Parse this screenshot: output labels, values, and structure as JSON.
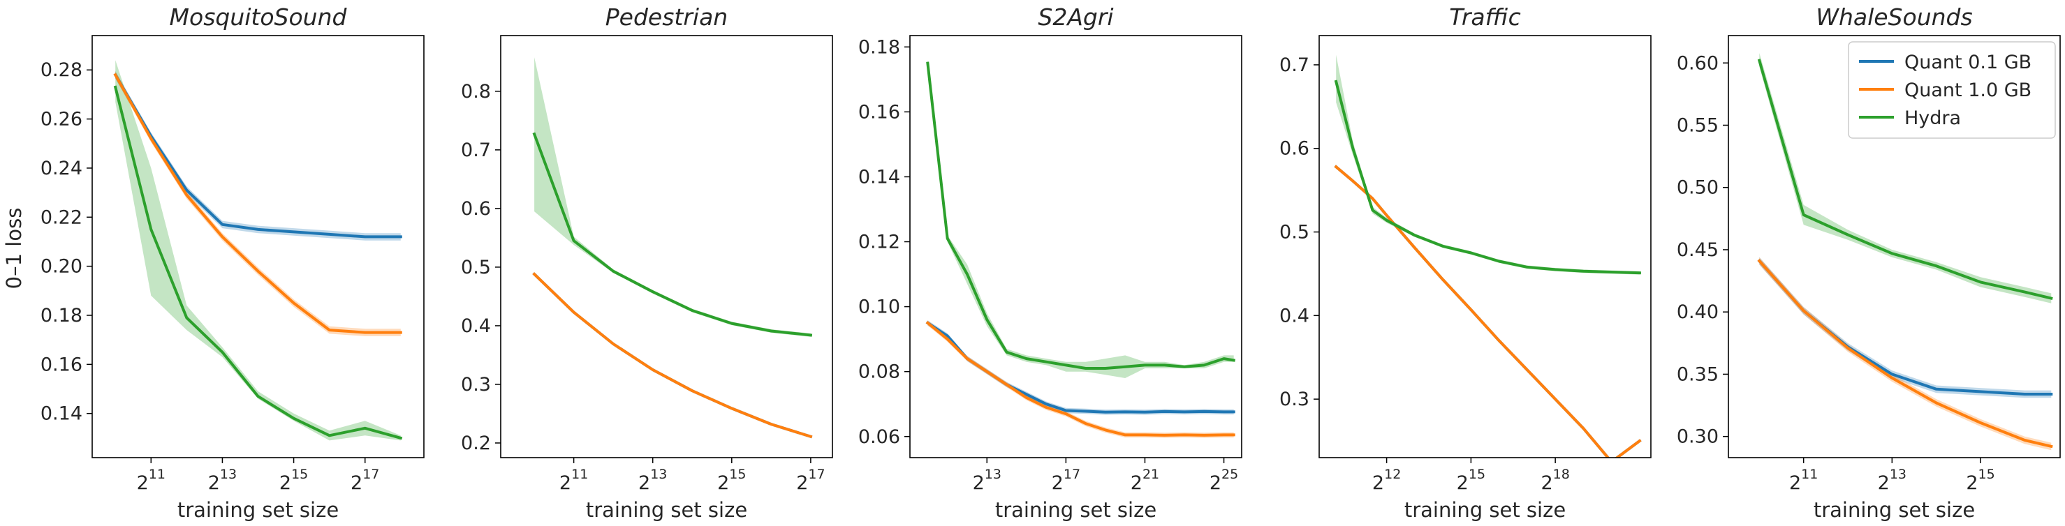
{
  "figure": {
    "ylabel": "0–1 loss",
    "legend": {
      "placement": "top-right of last panel",
      "entries": [
        {
          "label": "Quant 0.1 GB",
          "color": "#1f77b4"
        },
        {
          "label": "Quant 1.0 GB",
          "color": "#ff7f0e"
        },
        {
          "label": "Hydra",
          "color": "#2ca02c"
        }
      ]
    }
  },
  "chart_data": [
    {
      "type": "line",
      "title": "MosquitoSound",
      "xlabel": "training set size",
      "ylabel": "0–1 loss",
      "x_scale": "log2",
      "xlim_exp": [
        9.35,
        18.65
      ],
      "x_ticks": [
        "11",
        "13",
        "15",
        "17"
      ],
      "ylim": [
        0.122,
        0.294
      ],
      "y_ticks": [
        "0.14",
        "0.16",
        "0.18",
        "0.20",
        "0.22",
        "0.24",
        "0.26",
        "0.28"
      ],
      "x_exp": [
        10,
        11,
        12,
        13,
        14,
        15,
        16,
        17,
        18
      ],
      "series": [
        {
          "name": "Quant 0.1 GB",
          "color": "#1f77b4",
          "values": [
            0.278,
            0.253,
            0.231,
            0.217,
            0.215,
            0.214,
            0.213,
            0.212,
            0.212
          ],
          "band": 0.0015
        },
        {
          "name": "Quant 1.0 GB",
          "color": "#ff7f0e",
          "values": [
            0.278,
            0.252,
            0.229,
            0.212,
            0.198,
            0.185,
            0.174,
            0.173,
            0.173
          ],
          "band": 0.0015
        },
        {
          "name": "Hydra",
          "color": "#2ca02c",
          "values": [
            0.273,
            0.215,
            0.179,
            0.165,
            0.147,
            0.138,
            0.131,
            0.134,
            0.13
          ],
          "lower": [
            0.267,
            0.188,
            0.174,
            0.163,
            0.146,
            0.137,
            0.129,
            0.131,
            0.129
          ],
          "upper": [
            0.284,
            0.24,
            0.184,
            0.167,
            0.149,
            0.14,
            0.133,
            0.137,
            0.131
          ]
        }
      ]
    },
    {
      "type": "line",
      "title": "Pedestrian",
      "xlabel": "training set size",
      "x_scale": "log2",
      "xlim_exp": [
        9.15,
        17.55
      ],
      "x_ticks": [
        "11",
        "13",
        "15",
        "17"
      ],
      "ylim": [
        0.175,
        0.895
      ],
      "y_ticks": [
        "0.2",
        "0.3",
        "0.4",
        "0.5",
        "0.6",
        "0.7",
        "0.8"
      ],
      "x_exp": [
        10,
        11,
        12,
        13,
        14,
        15,
        16,
        17
      ],
      "series": [
        {
          "name": "Quant 0.1 GB",
          "color": "#1f77b4",
          "values": [
            0.488,
            0.423,
            0.369,
            0.325,
            0.289,
            0.259,
            0.232,
            0.211
          ],
          "band": 0.002
        },
        {
          "name": "Quant 1.0 GB",
          "color": "#ff7f0e",
          "values": [
            0.488,
            0.423,
            0.369,
            0.325,
            0.289,
            0.259,
            0.232,
            0.211
          ],
          "band": 0.002
        },
        {
          "name": "Hydra",
          "color": "#2ca02c",
          "values": [
            0.727,
            0.545,
            0.493,
            0.458,
            0.426,
            0.404,
            0.391,
            0.384
          ],
          "lower": [
            0.595,
            0.538,
            0.49,
            0.455,
            0.423,
            0.401,
            0.388,
            0.381
          ],
          "upper": [
            0.858,
            0.552,
            0.496,
            0.461,
            0.429,
            0.407,
            0.394,
            0.387
          ]
        }
      ]
    },
    {
      "type": "line",
      "title": "S2Agri",
      "xlabel": "training set size",
      "x_scale": "log2",
      "xlim_exp": [
        9.1,
        25.9
      ],
      "x_ticks": [
        "13",
        "17",
        "21",
        "25"
      ],
      "ylim": [
        0.0535,
        0.1835
      ],
      "y_ticks": [
        "0.06",
        "0.08",
        "0.10",
        "0.12",
        "0.14",
        "0.16",
        "0.18"
      ],
      "x_exp": [
        10,
        11,
        12,
        13,
        14,
        15,
        16,
        17,
        18,
        19,
        20,
        21,
        22,
        23,
        24,
        25,
        25.5
      ],
      "series": [
        {
          "name": "Quant 0.1 GB",
          "color": "#1f77b4",
          "values": [
            0.095,
            0.091,
            0.084,
            0.08,
            0.076,
            0.073,
            0.07,
            0.068,
            0.0678,
            0.0675,
            0.0676,
            0.0675,
            0.0677,
            0.0676,
            0.0677,
            0.0676,
            0.0676
          ],
          "band": 0.0008
        },
        {
          "name": "Quant 1.0 GB",
          "color": "#ff7f0e",
          "values": [
            0.095,
            0.09,
            0.084,
            0.08,
            0.076,
            0.072,
            0.069,
            0.067,
            0.064,
            0.062,
            0.0605,
            0.0605,
            0.0604,
            0.0605,
            0.0604,
            0.0605,
            0.0605
          ],
          "band": 0.0008
        },
        {
          "name": "Hydra",
          "color": "#2ca02c",
          "values": [
            0.175,
            0.121,
            0.11,
            0.096,
            0.086,
            0.084,
            0.083,
            0.082,
            0.081,
            0.081,
            0.0815,
            0.082,
            0.082,
            0.0815,
            0.082,
            0.084,
            0.0835
          ],
          "lower": [
            0.174,
            0.12,
            0.107,
            0.094,
            0.085,
            0.083,
            0.082,
            0.08,
            0.08,
            0.079,
            0.078,
            0.081,
            0.081,
            0.081,
            0.081,
            0.083,
            0.083
          ],
          "upper": [
            0.176,
            0.122,
            0.113,
            0.098,
            0.087,
            0.085,
            0.084,
            0.083,
            0.083,
            0.084,
            0.085,
            0.083,
            0.083,
            0.082,
            0.083,
            0.085,
            0.085
          ]
        }
      ]
    },
    {
      "type": "line",
      "title": "Traffic",
      "xlabel": "training set size",
      "x_scale": "log2",
      "xlim_exp": [
        9.6,
        21.4
      ],
      "x_ticks": [
        "12",
        "15",
        "18"
      ],
      "ylim": [
        0.23,
        0.735
      ],
      "y_ticks": [
        "0.3",
        "0.4",
        "0.5",
        "0.6",
        "0.7"
      ],
      "x_exp": [
        10.2,
        10.8,
        11.5,
        12,
        13,
        14,
        15,
        16,
        17,
        18,
        19,
        20,
        21
      ],
      "series": [
        {
          "name": "Quant 0.1 GB",
          "color": "#1f77b4",
          "values": [
            0.578,
            0.561,
            0.54,
            0.52,
            0.481,
            0.443,
            0.407,
            0.37,
            0.335,
            0.3,
            0.265,
            0.225,
            0.25
          ],
          "band": 0.002
        },
        {
          "name": "Quant 1.0 GB",
          "color": "#ff7f0e",
          "values": [
            0.578,
            0.561,
            0.54,
            0.52,
            0.481,
            0.443,
            0.407,
            0.37,
            0.335,
            0.3,
            0.265,
            0.225,
            0.25
          ],
          "band": 0.002
        },
        {
          "name": "Hydra",
          "color": "#2ca02c",
          "values": [
            0.68,
            0.6,
            0.526,
            0.514,
            0.496,
            0.483,
            0.475,
            0.465,
            0.458,
            0.455,
            0.453,
            0.452,
            0.451
          ],
          "lower": [
            0.655,
            0.592,
            0.522,
            0.511,
            0.494,
            0.481,
            0.473,
            0.463,
            0.456,
            0.453,
            0.451,
            0.45,
            0.449
          ],
          "upper": [
            0.712,
            0.608,
            0.53,
            0.517,
            0.498,
            0.485,
            0.477,
            0.467,
            0.46,
            0.457,
            0.455,
            0.454,
            0.453
          ]
        }
      ]
    },
    {
      "type": "line",
      "title": "WhaleSounds",
      "xlabel": "training set size",
      "x_scale": "log2",
      "xlim_exp": [
        9.3,
        16.8
      ],
      "x_ticks": [
        "11",
        "13",
        "15"
      ],
      "ylim": [
        0.283,
        0.622
      ],
      "y_ticks": [
        "0.30",
        "0.35",
        "0.40",
        "0.45",
        "0.50",
        "0.55",
        "0.60"
      ],
      "x_exp": [
        10,
        11,
        12,
        13,
        14,
        15,
        16,
        16.6
      ],
      "series": [
        {
          "name": "Quant 0.1 GB",
          "color": "#1f77b4",
          "values": [
            0.441,
            0.401,
            0.372,
            0.35,
            0.338,
            0.336,
            0.334,
            0.334
          ],
          "band": 0.003
        },
        {
          "name": "Quant 1.0 GB",
          "color": "#ff7f0e",
          "values": [
            0.441,
            0.401,
            0.371,
            0.347,
            0.327,
            0.311,
            0.297,
            0.292
          ],
          "band": 0.003
        },
        {
          "name": "Hydra",
          "color": "#2ca02c",
          "values": [
            0.602,
            0.478,
            0.462,
            0.447,
            0.437,
            0.424,
            0.416,
            0.411
          ],
          "lower": [
            0.597,
            0.47,
            0.458,
            0.444,
            0.434,
            0.42,
            0.412,
            0.407
          ],
          "upper": [
            0.608,
            0.486,
            0.466,
            0.45,
            0.44,
            0.428,
            0.42,
            0.415
          ]
        }
      ]
    }
  ]
}
